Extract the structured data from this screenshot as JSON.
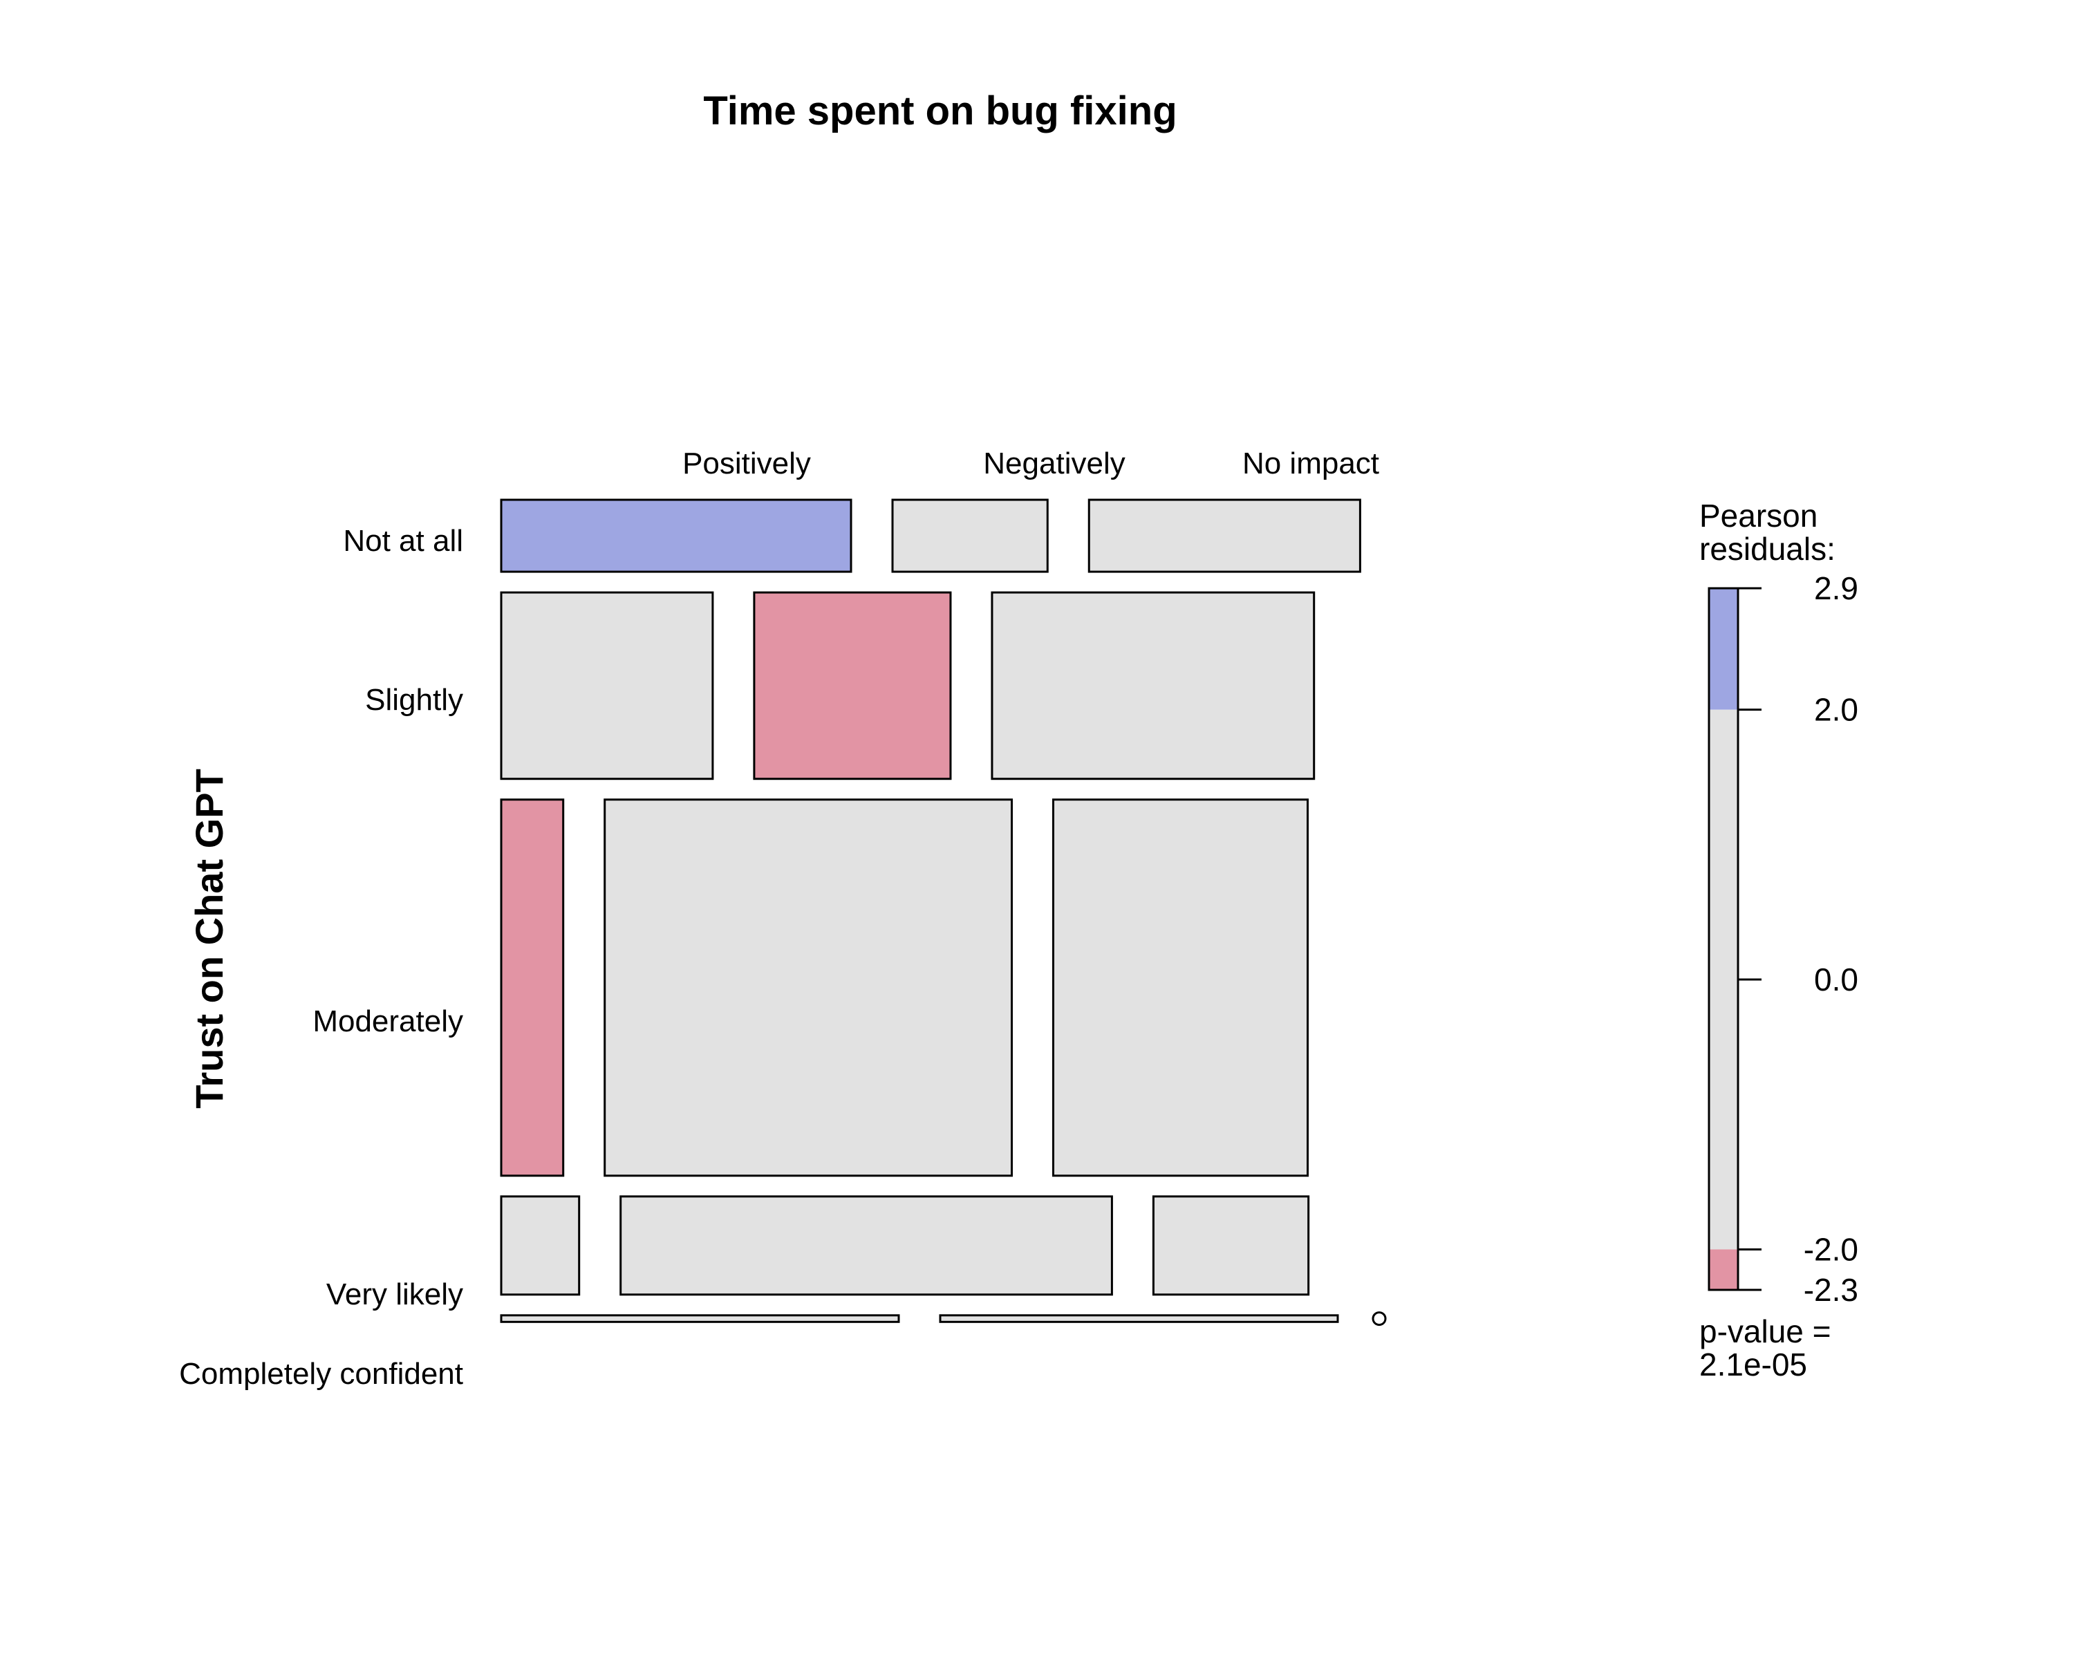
{
  "chart_data": {
    "type": "mosaic",
    "title": "Time spent on bug fixing",
    "ylabel": "Trust on Chat GPT",
    "columns": [
      "Positively",
      "Negatively",
      "No impact"
    ],
    "rows": [
      "Not at all",
      "Slightly",
      "Moderately",
      "Very likely",
      "Completely confident"
    ],
    "row_shares": [
      0.0909,
      0.2355,
      0.4752,
      0.124,
      0.0083
    ],
    "cell_shares": [
      [
        0.44,
        0.195,
        0.341
      ],
      [
        0.266,
        0.247,
        0.405
      ],
      [
        0.078,
        0.512,
        0.32
      ],
      [
        0.098,
        0.618,
        0.195
      ],
      [
        0.5,
        0.5,
        0.0
      ]
    ],
    "residual_class": [
      [
        "high",
        "none",
        "none"
      ],
      [
        "none",
        "low",
        "none"
      ],
      [
        "low",
        "none",
        "none"
      ],
      [
        "none",
        "none",
        "none"
      ],
      [
        "none",
        "none",
        "none"
      ]
    ],
    "legend": {
      "title_line1": "Pearson",
      "title_line2": "residuals:",
      "ticks": [
        "2.9",
        "2.0",
        "0.0",
        "-2.0",
        "-2.3"
      ],
      "tick_values": [
        2.9,
        2.0,
        0.0,
        -2.0,
        -2.3
      ],
      "range": [
        -2.3,
        2.9
      ],
      "pvalue_line1": "p-value =",
      "pvalue_line2": "2.1e-05"
    },
    "colors": {
      "high": "#9ea6e2",
      "low": "#e294a4",
      "none": "#e2e2e2",
      "stroke": "#000000"
    }
  }
}
